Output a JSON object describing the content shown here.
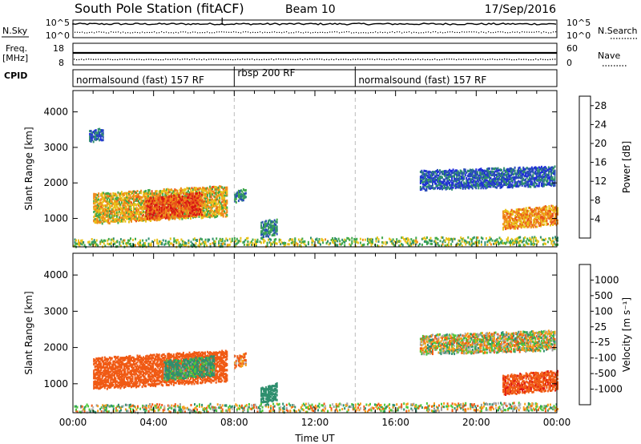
{
  "header": {
    "title": "South Pole Station (fitACF)",
    "beam": "Beam 10",
    "date": "17/Sep/2016"
  },
  "nsky_panel": {
    "left_label": "N.Sky",
    "right_label": "N.Search",
    "left_ticks": [
      "10^5",
      "10^0"
    ],
    "right_ticks": [
      "10^5",
      "10^0"
    ]
  },
  "freq_panel": {
    "left_label_1": "Freq.",
    "left_label_2": "[MHz]",
    "right_label": "Nave",
    "left_ticks": [
      "18",
      "8"
    ],
    "right_ticks": [
      "60",
      "0"
    ]
  },
  "cpid": {
    "label": "CPID",
    "segments": [
      {
        "start_hour": 0,
        "end_hour": 8,
        "text": "normalsound (fast) 157 RF"
      },
      {
        "start_hour": 8,
        "end_hour": 14,
        "text": "rbsp 200 RF"
      },
      {
        "start_hour": 14,
        "end_hour": 24,
        "text": "normalsound (fast) 157 RF"
      }
    ]
  },
  "colors": {
    "power_scale": [
      "#1e2bdc",
      "#2a4db8",
      "#2f8f6e",
      "#3fa84a",
      "#e8c21a",
      "#f08a1a",
      "#e8501a",
      "#d81414"
    ],
    "velocity_scale": [
      "#e01414",
      "#f05a14",
      "#f59e1a",
      "#b8b8b8",
      "#9c9c9c",
      "#4cc83a",
      "#2f8f6e",
      "#2a4db8",
      "#1e2bdc"
    ]
  },
  "chart_data": [
    {
      "type": "heatmap",
      "name": "power",
      "ylabel": "Slant Range [km]",
      "xlim_hours": [
        0,
        24
      ],
      "ylim": [
        200,
        4600
      ],
      "yticks": [
        1000,
        2000,
        3000,
        4000
      ],
      "colorbar_label": "Power [dB]",
      "colorbar_ticks": [
        "4",
        "8",
        "12",
        "16",
        "20",
        "24",
        "28"
      ],
      "colorbar_range": [
        0,
        30
      ],
      "regions": [
        {
          "t0": 1.0,
          "t1": 7.6,
          "r0": 900,
          "r1": 1750,
          "level": 18
        },
        {
          "t0": 3.6,
          "t1": 6.4,
          "r0": 1000,
          "r1": 1600,
          "level": 25
        },
        {
          "t0": 0.8,
          "t1": 1.5,
          "r0": 3200,
          "r1": 3500,
          "level": 6
        },
        {
          "t0": 8.0,
          "t1": 8.6,
          "r0": 1500,
          "r1": 1800,
          "level": 10
        },
        {
          "t0": 9.3,
          "t1": 10.1,
          "r0": 500,
          "r1": 950,
          "level": 10
        },
        {
          "t0": 17.2,
          "t1": 23.9,
          "r0": 1850,
          "r1": 2350,
          "level": 6
        },
        {
          "t0": 21.3,
          "t1": 24.0,
          "r0": 750,
          "r1": 1250,
          "level": 20
        },
        {
          "t0": 0.0,
          "t1": 24.0,
          "r0": 250,
          "r1": 450,
          "level": 14
        }
      ]
    },
    {
      "type": "heatmap",
      "name": "velocity",
      "xlabel": "Time UT",
      "ylabel": "Slant Range [km]",
      "xlim_hours": [
        0,
        24
      ],
      "ylim": [
        200,
        4600
      ],
      "yticks": [
        1000,
        2000,
        3000,
        4000
      ],
      "xticks": [
        "00:00",
        "04:00",
        "08:00",
        "12:00",
        "16:00",
        "20:00",
        "00:00"
      ],
      "colorbar_label": "Velocity [m s⁻¹]",
      "colorbar_ticks": [
        "1000",
        "500",
        "100",
        "25",
        "-25",
        "-100",
        "-500",
        "-1000"
      ],
      "regions": [
        {
          "t0": 1.0,
          "t1": 7.6,
          "r0": 900,
          "r1": 1750,
          "level": -300
        },
        {
          "t0": 4.5,
          "t1": 7.0,
          "r0": 1150,
          "r1": 1650,
          "level": 150
        },
        {
          "t0": 8.0,
          "t1": 8.6,
          "r0": 1500,
          "r1": 1800,
          "level": -150
        },
        {
          "t0": 9.3,
          "t1": 10.1,
          "r0": 500,
          "r1": 950,
          "level": 300
        },
        {
          "t0": 17.2,
          "t1": 23.9,
          "r0": 1850,
          "r1": 2350,
          "level": 0
        },
        {
          "t0": 21.3,
          "t1": 24.0,
          "r0": 750,
          "r1": 1250,
          "level": -400
        },
        {
          "t0": 0.0,
          "t1": 24.0,
          "r0": 250,
          "r1": 450,
          "level": 0
        }
      ]
    }
  ]
}
